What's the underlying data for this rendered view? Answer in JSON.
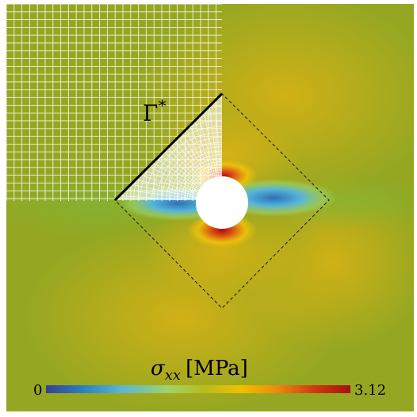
{
  "figure": {
    "gamma_label_symbol": "Γ",
    "gamma_label_sup": "*",
    "colorbar": {
      "title_symbol": "σ",
      "title_subscript": "xx",
      "title_unit": "[MPa]",
      "min_label": "0",
      "max_label": "3.12",
      "min_value": 0,
      "max_value": 3.12,
      "colors": [
        "#3a3f8f",
        "#2a7fc0",
        "#58b8d6",
        "#9ed36a",
        "#b5bd1a",
        "#f0c000",
        "#ec8a10",
        "#d03a10",
        "#a81010"
      ]
    },
    "field": {
      "background_color": "#95a722",
      "mesh_color": "#ffffff",
      "hole_color": "#ffffff",
      "boundary_line_color": "#000000"
    }
  }
}
